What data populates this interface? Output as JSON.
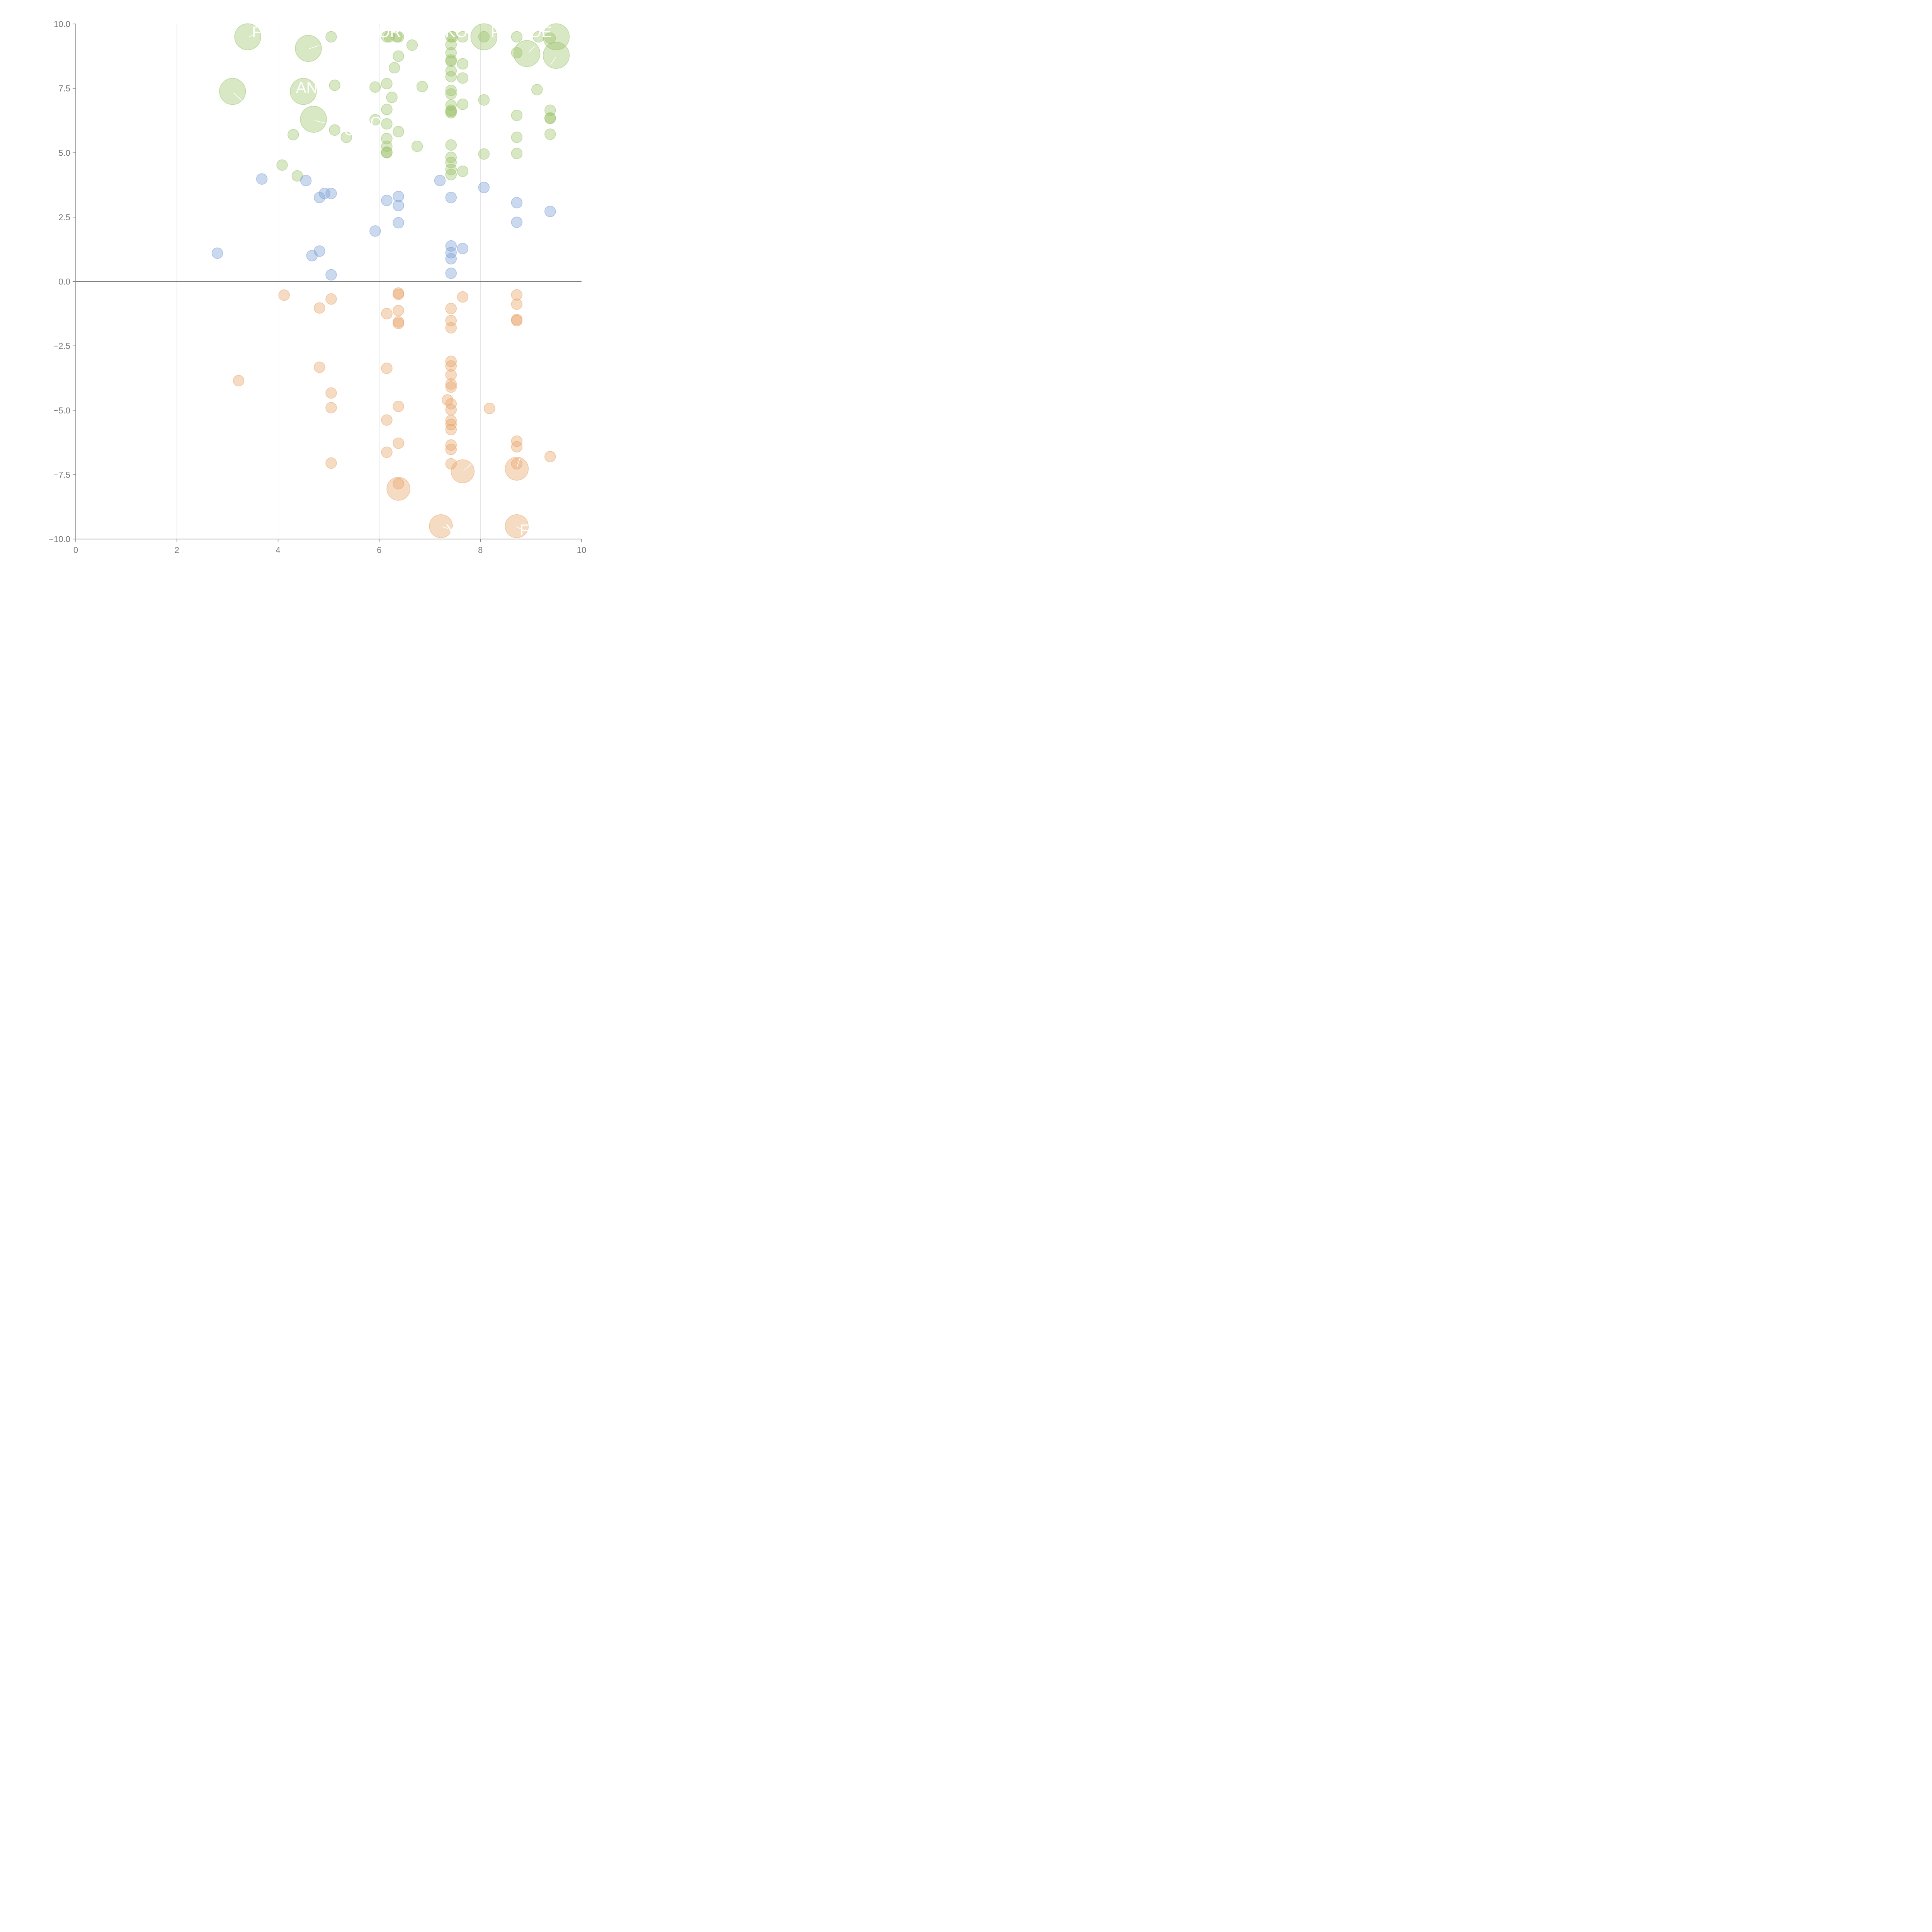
{
  "chart_data": {
    "type": "scatter",
    "xlim": [
      0,
      10
    ],
    "ylim": [
      -10,
      10
    ],
    "x_ticks": [
      0,
      2,
      4,
      6,
      8,
      10
    ],
    "x_tick_labels": [
      "0",
      "2",
      "4",
      "6",
      "8",
      "10"
    ],
    "y_ticks": [
      -10,
      -7.5,
      -5,
      -2.5,
      0,
      2.5,
      5,
      7.5,
      10
    ],
    "y_tick_labels": [
      "−10.0",
      "−7.5",
      "−5.0",
      "−2.5",
      "0.0",
      "2.5",
      "5.0",
      "7.5",
      "10.0"
    ],
    "x_grid": true,
    "y_grid": false,
    "zero_line": true,
    "series": [
      {
        "color": "#9dc36b",
        "points": [
          [
            3.4,
            9.5,
            34
          ],
          [
            4.6,
            9.05,
            34
          ],
          [
            3.1,
            7.38,
            34
          ],
          [
            4.5,
            7.38,
            34
          ],
          [
            4.7,
            6.3,
            34
          ],
          [
            8.07,
            9.5,
            34
          ],
          [
            8.92,
            8.85,
            34
          ],
          [
            9.5,
            9.5,
            34
          ],
          [
            9.5,
            8.78,
            34
          ],
          [
            5.05,
            9.5,
            14
          ],
          [
            6.15,
            9.5,
            14
          ],
          [
            6.2,
            9.5,
            14
          ],
          [
            6.35,
            9.5,
            14
          ],
          [
            6.38,
            9.5,
            14
          ],
          [
            6.65,
            9.18,
            14
          ],
          [
            6.38,
            8.75,
            14
          ],
          [
            6.3,
            8.3,
            14
          ],
          [
            7.42,
            9.5,
            14
          ],
          [
            7.45,
            9.5,
            14
          ],
          [
            7.65,
            9.5,
            14
          ],
          [
            7.42,
            9.2,
            14
          ],
          [
            7.42,
            8.88,
            14
          ],
          [
            7.42,
            8.6,
            14
          ],
          [
            7.42,
            8.55,
            14
          ],
          [
            7.65,
            8.45,
            14
          ],
          [
            7.42,
            8.18,
            14
          ],
          [
            7.42,
            7.95,
            14
          ],
          [
            7.65,
            7.9,
            14
          ],
          [
            8.07,
            9.5,
            14
          ],
          [
            8.72,
            9.5,
            14
          ],
          [
            8.72,
            8.88,
            14
          ],
          [
            9.15,
            9.5,
            14
          ],
          [
            9.38,
            9.45,
            14
          ],
          [
            5.12,
            7.62,
            14
          ],
          [
            5.92,
            7.55,
            14
          ],
          [
            6.15,
            7.68,
            14
          ],
          [
            6.85,
            7.57,
            14
          ],
          [
            6.25,
            7.15,
            14
          ],
          [
            7.42,
            7.42,
            14
          ],
          [
            7.42,
            7.28,
            14
          ],
          [
            7.42,
            6.85,
            14
          ],
          [
            7.42,
            6.65,
            14
          ],
          [
            7.42,
            6.6,
            14
          ],
          [
            7.42,
            6.55,
            14
          ],
          [
            7.65,
            6.88,
            14
          ],
          [
            8.07,
            7.05,
            14
          ],
          [
            9.12,
            7.45,
            14
          ],
          [
            6.15,
            6.68,
            14
          ],
          [
            5.92,
            6.28,
            14
          ],
          [
            6.15,
            6.12,
            14
          ],
          [
            5.12,
            5.88,
            14
          ],
          [
            5.35,
            5.6,
            14
          ],
          [
            4.3,
            5.7,
            14
          ],
          [
            6.38,
            5.82,
            14
          ],
          [
            6.15,
            5.55,
            14
          ],
          [
            6.15,
            5.25,
            14
          ],
          [
            6.15,
            5.02,
            14
          ],
          [
            6.15,
            5.0,
            14
          ],
          [
            6.75,
            5.25,
            14
          ],
          [
            7.42,
            5.3,
            14
          ],
          [
            7.42,
            4.82,
            14
          ],
          [
            7.42,
            4.62,
            14
          ],
          [
            7.42,
            4.35,
            14
          ],
          [
            7.42,
            4.15,
            14
          ],
          [
            7.65,
            4.28,
            14
          ],
          [
            8.07,
            4.95,
            14
          ],
          [
            8.72,
            6.45,
            14
          ],
          [
            8.72,
            5.6,
            14
          ],
          [
            8.72,
            4.97,
            14
          ],
          [
            9.38,
            6.65,
            14
          ],
          [
            9.38,
            6.35,
            14
          ],
          [
            9.38,
            6.33,
            14
          ],
          [
            9.38,
            5.72,
            14
          ],
          [
            4.08,
            4.52,
            14
          ],
          [
            4.38,
            4.1,
            14
          ]
        ]
      },
      {
        "color": "#7b9fd4",
        "points": [
          [
            3.68,
            3.98,
            14
          ],
          [
            4.55,
            3.92,
            14
          ],
          [
            4.92,
            3.42,
            14
          ],
          [
            5.05,
            3.42,
            14
          ],
          [
            4.82,
            3.26,
            14
          ],
          [
            6.15,
            3.15,
            14
          ],
          [
            6.38,
            3.3,
            14
          ],
          [
            6.38,
            2.95,
            14
          ],
          [
            6.38,
            2.28,
            14
          ],
          [
            5.92,
            1.96,
            14
          ],
          [
            2.8,
            1.1,
            14
          ],
          [
            4.67,
            1.0,
            14
          ],
          [
            4.82,
            1.18,
            14
          ],
          [
            5.05,
            0.26,
            14
          ],
          [
            7.2,
            3.92,
            14
          ],
          [
            7.42,
            3.26,
            14
          ],
          [
            7.42,
            1.38,
            14
          ],
          [
            7.42,
            1.12,
            14
          ],
          [
            7.42,
            0.88,
            14
          ],
          [
            7.42,
            0.32,
            14
          ],
          [
            7.65,
            1.28,
            14
          ],
          [
            8.07,
            3.65,
            14
          ],
          [
            8.72,
            3.06,
            14
          ],
          [
            8.72,
            2.3,
            14
          ],
          [
            9.38,
            2.72,
            14
          ]
        ]
      },
      {
        "color": "#e8a46a",
        "points": [
          [
            4.12,
            -0.53,
            14
          ],
          [
            4.82,
            -1.03,
            14
          ],
          [
            5.05,
            -0.68,
            14
          ],
          [
            6.38,
            -0.45,
            14
          ],
          [
            6.38,
            -0.5,
            14
          ],
          [
            6.15,
            -1.25,
            14
          ],
          [
            6.38,
            -1.13,
            14
          ],
          [
            6.38,
            -1.57,
            14
          ],
          [
            6.38,
            -1.63,
            14
          ],
          [
            7.42,
            -1.05,
            14
          ],
          [
            7.42,
            -1.52,
            14
          ],
          [
            7.42,
            -1.8,
            14
          ],
          [
            7.65,
            -0.6,
            14
          ],
          [
            8.72,
            -0.52,
            14
          ],
          [
            8.72,
            -0.88,
            14
          ],
          [
            8.72,
            -1.48,
            14
          ],
          [
            8.72,
            -1.52,
            14
          ],
          [
            3.22,
            -3.85,
            14
          ],
          [
            4.82,
            -3.33,
            14
          ],
          [
            5.05,
            -4.33,
            14
          ],
          [
            5.05,
            -4.9,
            14
          ],
          [
            6.15,
            -3.37,
            14
          ],
          [
            6.38,
            -4.85,
            14
          ],
          [
            7.42,
            -3.1,
            14
          ],
          [
            7.42,
            -3.28,
            14
          ],
          [
            7.42,
            -3.63,
            14
          ],
          [
            7.42,
            -3.98,
            14
          ],
          [
            7.42,
            -4.1,
            14
          ],
          [
            7.35,
            -4.6,
            14
          ],
          [
            7.42,
            -4.75,
            14
          ],
          [
            7.42,
            -4.98,
            14
          ],
          [
            7.42,
            -5.4,
            14
          ],
          [
            7.42,
            -5.55,
            14
          ],
          [
            7.42,
            -5.75,
            14
          ],
          [
            8.18,
            -4.93,
            14
          ],
          [
            6.15,
            -5.38,
            14
          ],
          [
            6.38,
            -6.28,
            14
          ],
          [
            6.15,
            -6.63,
            14
          ],
          [
            5.05,
            -7.05,
            14
          ],
          [
            7.42,
            -6.35,
            14
          ],
          [
            7.42,
            -6.52,
            14
          ],
          [
            7.42,
            -7.08,
            14
          ],
          [
            8.72,
            -6.2,
            14
          ],
          [
            8.72,
            -6.42,
            14
          ],
          [
            8.72,
            -7.08,
            14
          ],
          [
            9.38,
            -6.8,
            14
          ],
          [
            6.38,
            -7.85,
            14
          ],
          [
            6.38,
            -8.05,
            30
          ],
          [
            7.65,
            -7.37,
            30
          ],
          [
            8.72,
            -7.27,
            30
          ],
          [
            7.22,
            -9.5,
            30
          ],
          [
            8.72,
            -9.5,
            30
          ]
        ]
      }
    ]
  }
}
